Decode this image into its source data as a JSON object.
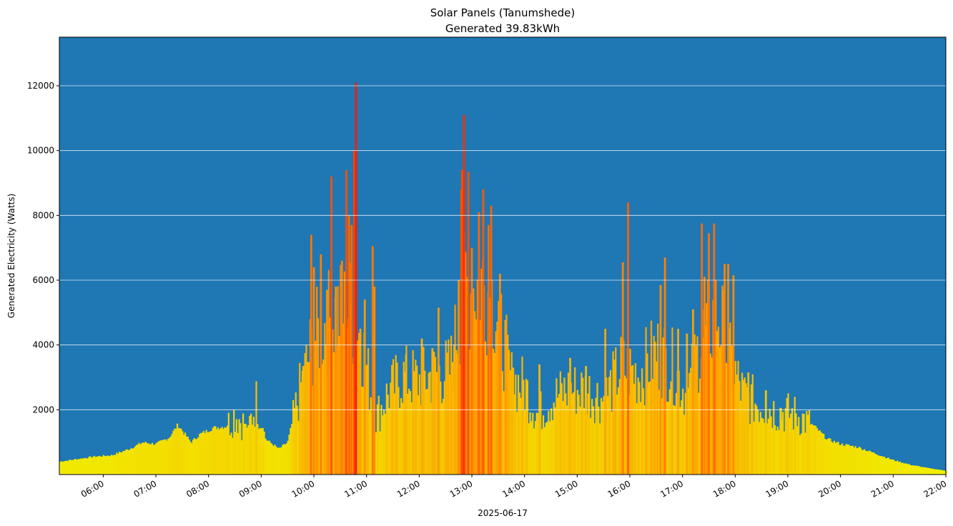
{
  "chart_data": {
    "type": "bar",
    "title": "Solar Panels (Tanumshede)",
    "subtitle": "Generated 39.83kWh",
    "xlabel": "2025-06-17",
    "ylabel": "Generated Electricity (Watts)",
    "x_range": [
      "05:10",
      "22:00"
    ],
    "ylim": [
      0,
      13500
    ],
    "y_ticks": [
      2000,
      4000,
      6000,
      8000,
      10000,
      12000
    ],
    "x_ticks": [
      "06:00",
      "07:00",
      "08:00",
      "09:00",
      "10:00",
      "11:00",
      "12:00",
      "13:00",
      "14:00",
      "15:00",
      "16:00",
      "17:00",
      "18:00",
      "19:00",
      "20:00",
      "21:00",
      "22:00"
    ],
    "grid": "horizontal",
    "background_color": "#1f77b4",
    "color_scale": {
      "low": "#f0f000",
      "mid": "#ff8c00",
      "high": "#ff1a00",
      "max_value": 12100
    },
    "profile": [
      [
        "05:10",
        400
      ],
      [
        "05:30",
        480
      ],
      [
        "05:50",
        560
      ],
      [
        "06:10",
        600
      ],
      [
        "06:30",
        800
      ],
      [
        "06:45",
        1000
      ],
      [
        "07:00",
        950
      ],
      [
        "07:15",
        1150
      ],
      [
        "07:25",
        1550
      ],
      [
        "07:40",
        1000
      ],
      [
        "07:50",
        1250
      ],
      [
        "08:05",
        1450
      ],
      [
        "08:20",
        1500
      ],
      [
        "08:30",
        1950
      ],
      [
        "08:45",
        1450
      ],
      [
        "08:55",
        2400
      ],
      [
        "09:05",
        1100
      ],
      [
        "09:20",
        800
      ],
      [
        "09:30",
        1000
      ],
      [
        "09:45",
        2800
      ],
      [
        "10:00",
        4300
      ],
      [
        "10:20",
        5000
      ],
      [
        "10:40",
        5300
      ],
      [
        "10:55",
        4200
      ],
      [
        "11:10",
        1800
      ],
      [
        "11:25",
        2600
      ],
      [
        "11:40",
        3100
      ],
      [
        "12:00",
        3000
      ],
      [
        "12:20",
        3200
      ],
      [
        "12:35",
        3300
      ],
      [
        "12:50",
        5700
      ],
      [
        "13:10",
        6200
      ],
      [
        "13:25",
        5600
      ],
      [
        "13:45",
        3000
      ],
      [
        "14:00",
        2800
      ],
      [
        "14:15",
        1900
      ],
      [
        "14:30",
        2400
      ],
      [
        "14:50",
        2700
      ],
      [
        "15:10",
        2700
      ],
      [
        "15:30",
        2400
      ],
      [
        "15:50",
        3400
      ],
      [
        "16:10",
        3200
      ],
      [
        "16:30",
        3900
      ],
      [
        "16:50",
        3400
      ],
      [
        "17:05",
        2500
      ],
      [
        "17:20",
        4200
      ],
      [
        "17:40",
        5200
      ],
      [
        "17:55",
        3500
      ],
      [
        "18:10",
        2500
      ],
      [
        "18:30",
        2200
      ],
      [
        "18:50",
        2000
      ],
      [
        "19:10",
        1900
      ],
      [
        "19:30",
        1500
      ],
      [
        "19:45",
        1100
      ],
      [
        "20:00",
        950
      ],
      [
        "20:20",
        850
      ],
      [
        "20:40",
        650
      ],
      [
        "21:00",
        450
      ],
      [
        "21:20",
        300
      ],
      [
        "21:40",
        200
      ],
      [
        "22:00",
        120
      ]
    ],
    "spikes": [
      [
        "09:48",
        3350
      ],
      [
        "09:57",
        7400
      ],
      [
        "10:00",
        6400
      ],
      [
        "10:08",
        6800
      ],
      [
        "10:15",
        5700
      ],
      [
        "10:20",
        9200
      ],
      [
        "10:25",
        5800
      ],
      [
        "10:32",
        6600
      ],
      [
        "10:37",
        9400
      ],
      [
        "10:40",
        8000
      ],
      [
        "10:43",
        7700
      ],
      [
        "10:46",
        10000
      ],
      [
        "10:48",
        12100
      ],
      [
        "10:53",
        4500
      ],
      [
        "10:58",
        5400
      ],
      [
        "11:07",
        7050
      ],
      [
        "11:09",
        5800
      ],
      [
        "11:45",
        3700
      ],
      [
        "12:03",
        4200
      ],
      [
        "12:15",
        3900
      ],
      [
        "12:22",
        5150
      ],
      [
        "12:40",
        4000
      ],
      [
        "12:45",
        6000
      ],
      [
        "12:48",
        8800
      ],
      [
        "12:49",
        9400
      ],
      [
        "12:51",
        11100
      ],
      [
        "12:56",
        9350
      ],
      [
        "13:00",
        7000
      ],
      [
        "13:08",
        8100
      ],
      [
        "13:13",
        8800
      ],
      [
        "13:19",
        7700
      ],
      [
        "13:22",
        8300
      ],
      [
        "13:32",
        6200
      ],
      [
        "13:47",
        3300
      ],
      [
        "14:17",
        3400
      ],
      [
        "14:52",
        3600
      ],
      [
        "15:10",
        3350
      ],
      [
        "15:32",
        4500
      ],
      [
        "15:52",
        6550
      ],
      [
        "15:58",
        8400
      ],
      [
        "16:35",
        5850
      ],
      [
        "16:40",
        6700
      ],
      [
        "16:55",
        4500
      ],
      [
        "17:05",
        4350
      ],
      [
        "17:12",
        5100
      ],
      [
        "17:22",
        7750
      ],
      [
        "17:25",
        6100
      ],
      [
        "17:30",
        7450
      ],
      [
        "17:36",
        7750
      ],
      [
        "17:48",
        6500
      ],
      [
        "17:52",
        6500
      ],
      [
        "17:58",
        6150
      ],
      [
        "18:15",
        3150
      ],
      [
        "18:35",
        2600
      ],
      [
        "18:52",
        2050
      ]
    ]
  }
}
